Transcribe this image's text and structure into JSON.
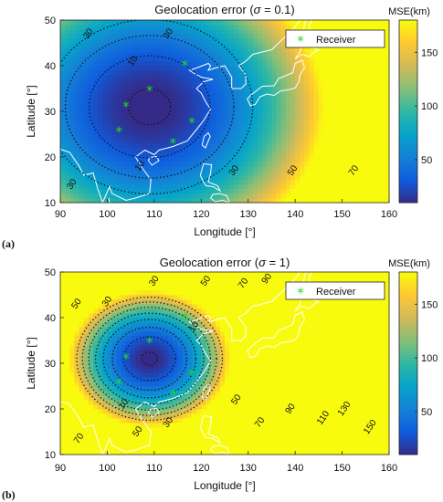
{
  "chart_data": [
    {
      "type": "heatmap",
      "panel_label": "(a)",
      "title_prefix": "Geolocation error (",
      "title_sigma": "σ",
      "title_suffix": " = 0.1)",
      "sigma": 0.1,
      "xlabel": "Longitude [°]",
      "ylabel": "Latitude [°]",
      "xlim": [
        90,
        160
      ],
      "ylim": [
        10,
        50
      ],
      "xticks": [
        "90",
        "100",
        "110",
        "120",
        "130",
        "140",
        "150",
        "160"
      ],
      "yticks": [
        "10",
        "20",
        "30",
        "40",
        "50"
      ],
      "colorbar_label": "MSE(km)",
      "colorbar_range": [
        10,
        180
      ],
      "colorbar_ticks": [
        "50",
        "100",
        "150"
      ],
      "colormap": [
        "#352a87",
        "#0f5cdd",
        "#1481d6",
        "#06a4ca",
        "#2eb7a4",
        "#87bf77",
        "#d1bb59",
        "#fec832",
        "#f9fb0e"
      ],
      "field_center": [
        109,
        31
      ],
      "field_scale": 0.21,
      "contour_labels": [
        {
          "text": "30",
          "lon": 96,
          "lat": 47
        },
        {
          "text": "10",
          "lon": 105.5,
          "lat": 41
        },
        {
          "text": "30",
          "lon": 113,
          "lat": 47
        },
        {
          "text": "10",
          "lon": 107,
          "lat": 18
        },
        {
          "text": "30",
          "lon": 92.5,
          "lat": 14
        },
        {
          "text": "30",
          "lon": 127,
          "lat": 17
        },
        {
          "text": "50",
          "lon": 139.5,
          "lat": 17
        },
        {
          "text": "70",
          "lon": 152.5,
          "lat": 17
        }
      ],
      "contour_levels": [
        10,
        30,
        50,
        70
      ],
      "legend": "Receiver",
      "legend_pos": "top-right",
      "receivers": [
        {
          "lon": 109,
          "lat": 34.5
        },
        {
          "lon": 104,
          "lat": 31
        },
        {
          "lon": 116.5,
          "lat": 40
        },
        {
          "lon": 118,
          "lat": 27.5
        },
        {
          "lon": 102.5,
          "lat": 25.5
        },
        {
          "lon": 114,
          "lat": 23
        }
      ]
    },
    {
      "type": "heatmap",
      "panel_label": "(b)",
      "title_prefix": "Geolocation error (",
      "title_sigma": "σ",
      "title_suffix": " = 1)",
      "sigma": 1,
      "xlabel": "Longitude [°]",
      "ylabel": "Latitude [°]",
      "xlim": [
        90,
        160
      ],
      "ylim": [
        10,
        50
      ],
      "xticks": [
        "90",
        "100",
        "110",
        "120",
        "130",
        "140",
        "150",
        "160"
      ],
      "yticks": [
        "10",
        "20",
        "30",
        "40",
        "50"
      ],
      "colorbar_label": "MSE(km)",
      "colorbar_range": [
        10,
        180
      ],
      "colorbar_ticks": [
        "50",
        "100",
        "150"
      ],
      "colormap": [
        "#352a87",
        "#0f5cdd",
        "#1481d6",
        "#06a4ca",
        "#2eb7a4",
        "#87bf77",
        "#d1bb59",
        "#fec832",
        "#f9fb0e"
      ],
      "field_center": [
        109,
        31
      ],
      "field_scale": 0.9,
      "contour_labels": [
        {
          "text": "50",
          "lon": 93.5,
          "lat": 43
        },
        {
          "text": "30",
          "lon": 100,
          "lat": 43.5
        },
        {
          "text": "30",
          "lon": 110,
          "lat": 48
        },
        {
          "text": "50",
          "lon": 121,
          "lat": 48
        },
        {
          "text": "70",
          "lon": 129,
          "lat": 47.5
        },
        {
          "text": "90",
          "lon": 134,
          "lat": 48.5
        },
        {
          "text": "10",
          "lon": 118.5,
          "lat": 38
        },
        {
          "text": "10",
          "lon": 103.5,
          "lat": 21
        },
        {
          "text": "30",
          "lon": 113,
          "lat": 17
        },
        {
          "text": "50",
          "lon": 106.5,
          "lat": 15
        },
        {
          "text": "70",
          "lon": 94,
          "lat": 13.5
        },
        {
          "text": "50",
          "lon": 127.5,
          "lat": 22
        },
        {
          "text": "70",
          "lon": 132.5,
          "lat": 17
        },
        {
          "text": "90",
          "lon": 139,
          "lat": 20
        },
        {
          "text": "110",
          "lon": 146,
          "lat": 18
        },
        {
          "text": "130",
          "lon": 150.5,
          "lat": 20
        },
        {
          "text": "150",
          "lon": 156,
          "lat": 16
        }
      ],
      "contour_levels": [
        10,
        30,
        50,
        70,
        90,
        110,
        130,
        150
      ],
      "legend": "Receiver",
      "legend_pos": "top-right",
      "receivers": [
        {
          "lon": 109,
          "lat": 34.5
        },
        {
          "lon": 104,
          "lat": 31
        },
        {
          "lon": 116.5,
          "lat": 40
        },
        {
          "lon": 118,
          "lat": 27.5
        },
        {
          "lon": 102.5,
          "lat": 25.5
        },
        {
          "lon": 114,
          "lat": 23
        }
      ]
    }
  ]
}
